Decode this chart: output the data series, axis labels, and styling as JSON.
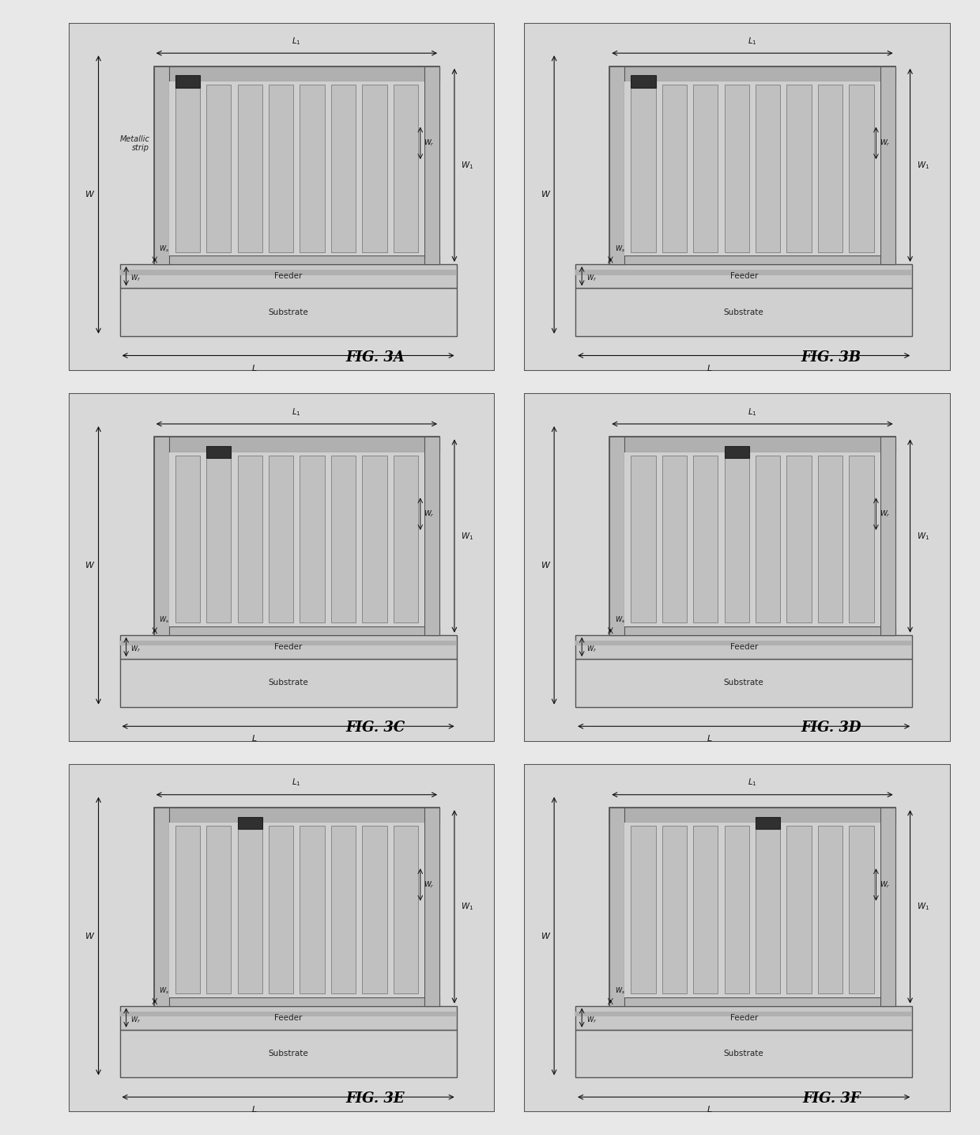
{
  "figures": [
    {
      "label": "FIG. 3A",
      "switch_finger": 0,
      "has_metallic_label": true
    },
    {
      "label": "FIG. 3B",
      "switch_finger": 0,
      "has_metallic_label": false
    },
    {
      "label": "FIG. 3C",
      "switch_finger": 1,
      "has_metallic_label": false
    },
    {
      "label": "FIG. 3D",
      "switch_finger": 3,
      "has_metallic_label": false
    },
    {
      "label": "FIG. 3E",
      "switch_finger": 2,
      "has_metallic_label": false
    },
    {
      "label": "FIG. 3F",
      "switch_finger": 4,
      "has_metallic_label": false
    }
  ],
  "num_fingers": 8,
  "outer_bg": "#e8e8e8",
  "panel_bg": "#d8d8d8",
  "substrate_color": "#d0d0d0",
  "feeder_color": "#cccccc",
  "feeder_stripe_color": "#b8b8b8",
  "res_inner_bg": "#d0d0d0",
  "res_frame_color": "#b0b0b0",
  "finger_fill": "#c4c4c4",
  "finger_edge": "#888888",
  "switch_color": "#404040",
  "border_color": "#555555",
  "text_color": "#222222",
  "arrow_color": "#111111"
}
